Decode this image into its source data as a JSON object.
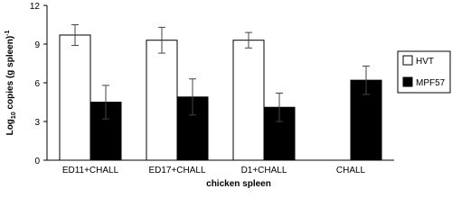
{
  "chart_data": {
    "type": "bar",
    "y_label": {
      "base": "Log",
      "sub": "10",
      "main": " copies (g spleen)",
      "sup": "-1"
    },
    "x_label": "chicken spleen",
    "categories": [
      "ED11+CHALL",
      "ED17+CHALL",
      "D1+CHALL",
      "CHALL"
    ],
    "series": [
      {
        "name": "HVT",
        "color": "#ffffff",
        "values": [
          9.7,
          9.3,
          9.3,
          null
        ],
        "errors": [
          0.8,
          1.0,
          0.6,
          null
        ]
      },
      {
        "name": "MPF57",
        "color": "#000000",
        "values": [
          4.5,
          4.9,
          4.1,
          6.2
        ],
        "errors": [
          1.3,
          1.4,
          1.1,
          1.1
        ]
      }
    ],
    "ylim": [
      0,
      12
    ],
    "yticks": [
      0,
      3,
      6,
      9,
      12
    ],
    "grid": false,
    "legend": "right"
  }
}
